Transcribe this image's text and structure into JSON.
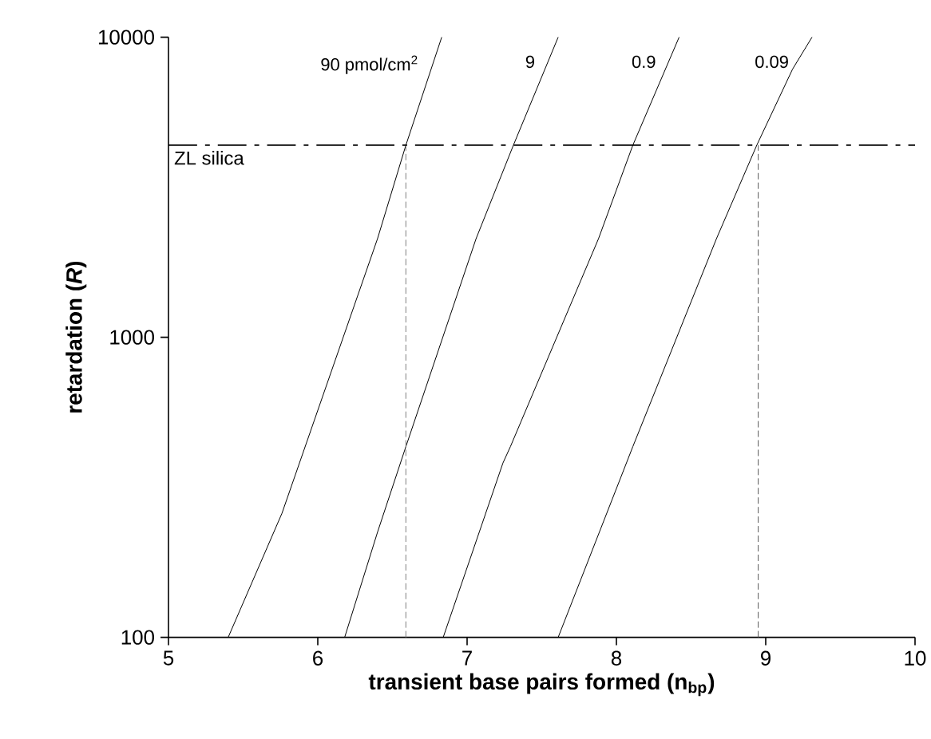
{
  "chart_data": {
    "type": "line",
    "xlabel": "transient base pairs formed (n$_{bp}$)",
    "ylabel": "retardation (*R*)",
    "xlim": [
      5,
      10
    ],
    "xticks": [
      5,
      6,
      7,
      8,
      9,
      10
    ],
    "ylim": [
      100,
      10000
    ],
    "yticks": [
      100,
      1000,
      10000
    ],
    "log": "y",
    "grid": false,
    "legend": false,
    "marker": "none",
    "line_style": "solid",
    "series": [
      {
        "name": "90 pmol/cm$^{2}$",
        "color": "#000000",
        "x": [
          5.4,
          5.76,
          6.4,
          6.59,
          6.83
        ],
        "values": [
          100,
          259,
          2130,
          4365,
          10000
        ]
      },
      {
        "name": "9",
        "color": "#000000",
        "x": [
          6.18,
          6.4,
          6.59,
          7.06,
          7.31,
          7.61
        ],
        "values": [
          100,
          224,
          432,
          2130,
          4365,
          10000
        ]
      },
      {
        "name": "0.9",
        "color": "#000000",
        "x": [
          6.84,
          7.24,
          7.29,
          7.88,
          8.11,
          8.42
        ],
        "values": [
          100,
          381,
          432,
          2130,
          4365,
          10000
        ]
      },
      {
        "name": "0.09",
        "color": "#000000",
        "x": [
          7.61,
          8.11,
          8.67,
          8.94,
          9.18,
          9.31
        ],
        "values": [
          100,
          432,
          2130,
          4365,
          7830,
          10000
        ]
      },
      {
        "color": "#808080",
        "line_style": "dashed",
        "x": [
          6.59,
          6.59
        ],
        "values": [
          100,
          4365
        ]
      },
      {
        "color": "#555555",
        "line_style": "dashed",
        "x": [
          8.95,
          8.95
        ],
        "values": [
          100,
          4365
        ]
      }
    ],
    "ref_lines": [
      {
        "axis": "y",
        "value": 4365,
        "label": "ZL silica",
        "line_style": "dashed",
        "color": "#000000"
      }
    ]
  }
}
